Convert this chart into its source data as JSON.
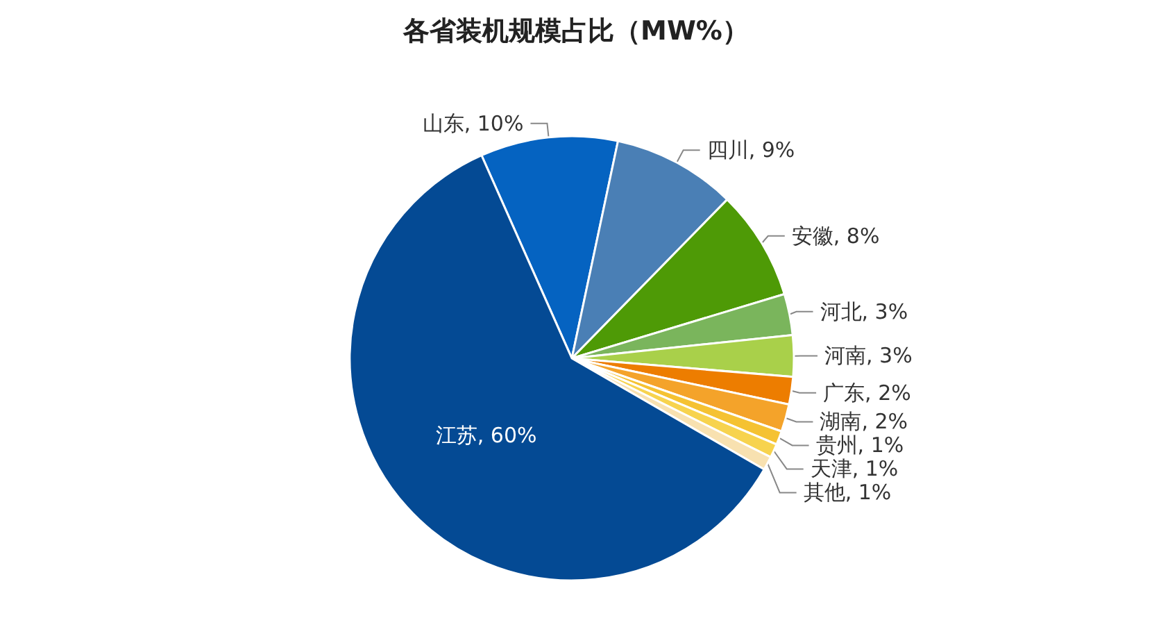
{
  "chart_data": {
    "type": "pie",
    "title": "各省装机规模占比（MW%）",
    "categories": [
      "山东",
      "四川",
      "安徽",
      "河北",
      "河南",
      "广东",
      "湖南",
      "贵州",
      "天津",
      "其他",
      "江苏"
    ],
    "values": [
      10,
      9,
      8,
      3,
      3,
      2,
      2,
      1,
      1,
      1,
      60
    ],
    "value_labels": [
      "10%",
      "9%",
      "8%",
      "3%",
      "3%",
      "2%",
      "2%",
      "1%",
      "1%",
      "1%",
      "60%"
    ],
    "colors": [
      "#0563c1",
      "#4a7fb5",
      "#4e9a06",
      "#7ab55c",
      "#a9d04a",
      "#ed7d00",
      "#f4a32a",
      "#f5c232",
      "#f7d34e",
      "#f8e1b0",
      "#044a94"
    ],
    "legend": false
  }
}
